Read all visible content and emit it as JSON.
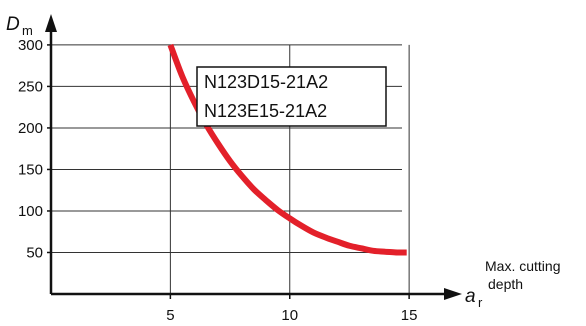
{
  "chart_data": {
    "type": "line",
    "y_label": {
      "var": "D",
      "sub": "m"
    },
    "x_label": {
      "var": "a",
      "sub": "r",
      "description": [
        "Max. cutting",
        "depth"
      ]
    },
    "xlim": [
      0,
      16
    ],
    "ylim": [
      0,
      330
    ],
    "x_ticks": [
      5,
      10,
      15
    ],
    "y_ticks": [
      50,
      100,
      150,
      200,
      250,
      300
    ],
    "grid": true,
    "legend_box": [
      "N123D15-21A2",
      "N123E15-21A2"
    ],
    "series": [
      {
        "color": "#e3202a",
        "x": [
          5,
          5.5,
          6,
          6.5,
          7,
          7.5,
          8,
          8.5,
          9,
          9.5,
          10,
          10.5,
          11,
          11.5,
          12,
          12.5,
          13,
          13.5,
          14,
          14.5,
          14.9
        ],
        "y": [
          300,
          262,
          231,
          204,
          181,
          160,
          142,
          126,
          113,
          101,
          91,
          82,
          74,
          68,
          63,
          58,
          55,
          52,
          51,
          50,
          50
        ]
      }
    ]
  }
}
